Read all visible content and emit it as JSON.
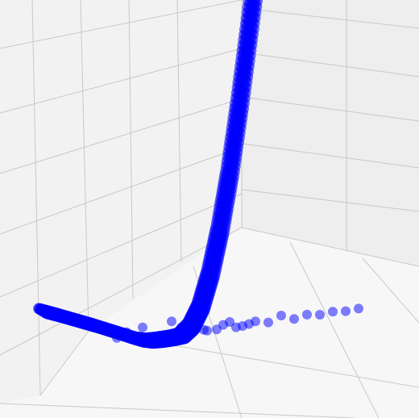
{
  "chart_data": {
    "type": "scatter",
    "projection": "3d",
    "title": "",
    "xlabel": "",
    "ylabel": "",
    "zlabel": "",
    "grid": true,
    "colors": {
      "marker": "#0000ff",
      "grid_line": "#c8c8c8",
      "pane_back": "#eeeeee",
      "pane_side": "#f2f2f2",
      "pane_floor": "#f7f7f7"
    },
    "series": [
      {
        "dense_band": {
          "x": [
            -3.8,
            -3.4,
            -3.0,
            -2.6,
            -2.2,
            -1.8,
            -1.4,
            -1.1,
            -0.8,
            -0.5,
            -0.2,
            0.0,
            0.2,
            0.5,
            0.8,
            1.1,
            1.4,
            1.7,
            2.0,
            2.3,
            2.6,
            2.9
          ],
          "y": [
            1.4,
            1.24,
            1.07,
            0.9,
            0.73,
            0.55,
            0.37,
            0.23,
            0.1,
            0.02,
            0.0,
            0.0,
            0.0,
            0.02,
            0.25,
            0.8,
            1.75,
            3.05,
            4.7,
            6.7,
            8.9,
            11.2
          ]
        },
        "outliers": {
          "x": [
            -1.5,
            -1.2,
            -0.9,
            -0.7,
            0.2,
            0.4,
            0.6,
            0.9,
            1.2,
            1.6,
            2.0,
            2.4,
            2.8,
            3.2,
            3.6,
            4.0,
            4.4,
            4.8,
            5.2,
            5.6,
            6.0,
            0.5,
            0.7,
            1.0,
            1.3,
            1.8,
            2.2,
            2.6
          ],
          "y": [
            0.25,
            0.38,
            0.2,
            0.45,
            0.5,
            0.12,
            0.35,
            0.15,
            0.1,
            0.05,
            0.22,
            0.04,
            0.12,
            0.03,
            0.18,
            0.02,
            0.09,
            0.03,
            0.06,
            0.02,
            0.04,
            0.28,
            0.05,
            0.3,
            0.06,
            0.16,
            0.03,
            0.07
          ]
        }
      }
    ]
  }
}
